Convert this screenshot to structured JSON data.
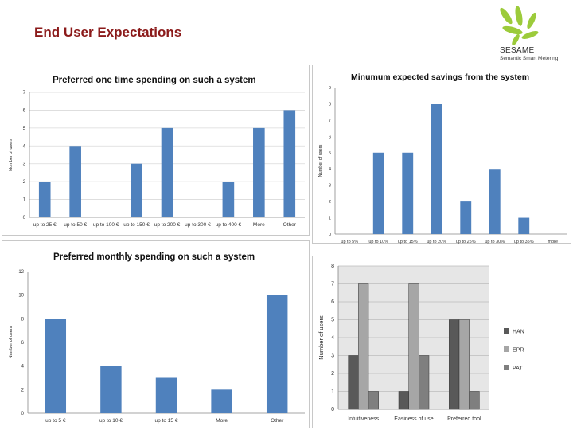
{
  "slide": {
    "title": "End User Expectations",
    "logo_name": "SESAME",
    "logo_tagline": "Semantic Smart Metering",
    "logo_color": "#9ccb3b"
  },
  "chart_data": [
    {
      "type": "bar",
      "title": "Preferred one time spending on such a system",
      "ylabel": "Number of users",
      "xlabel": "",
      "categories": [
        "up to 25 €",
        "up to 50 €",
        "up to 100 €",
        "up to 150 €",
        "up to 200 €",
        "up to 300 €",
        "up to 400 €",
        "More",
        "Other"
      ],
      "values": [
        2,
        4,
        0,
        3,
        5,
        0,
        2,
        5,
        6
      ],
      "ylim": [
        0,
        7
      ],
      "yticks": [
        0,
        1,
        2,
        3,
        4,
        5,
        6,
        7
      ],
      "grid": true,
      "legend": "none",
      "bar_color": "#4f81bd"
    },
    {
      "type": "bar",
      "title": "Minumum expected savings from the system",
      "ylabel": "Number of users",
      "xlabel": "",
      "categories": [
        "up to 5%",
        "up to 10%",
        "up to 15%",
        "up to 20%",
        "up to 25%",
        "up to 30%",
        "up to 35%",
        "more"
      ],
      "values": [
        0,
        5,
        5,
        8,
        2,
        4,
        1,
        0
      ],
      "ylim": [
        0,
        9
      ],
      "yticks": [
        0,
        1,
        2,
        3,
        4,
        5,
        6,
        7,
        8,
        9
      ],
      "grid": false,
      "legend": "none",
      "bar_color": "#4f81bd"
    },
    {
      "type": "bar",
      "title": "Preferred monthly spending on such a system",
      "ylabel": "Number of users",
      "xlabel": "",
      "categories": [
        "up to 5 €",
        "up to 10 €",
        "up to 15 €",
        "More",
        "Other"
      ],
      "values": [
        8,
        4,
        3,
        2,
        10
      ],
      "ylim": [
        0,
        12
      ],
      "yticks": [
        0,
        2,
        4,
        6,
        8,
        10,
        12
      ],
      "grid": false,
      "legend": "none",
      "bar_color": "#4f81bd"
    },
    {
      "type": "bar",
      "title": "",
      "ylabel": "Number of users",
      "xlabel": "",
      "categories": [
        "Intuitiveness",
        "Easiness of use",
        "Preferred tool"
      ],
      "series": [
        {
          "name": "HAN",
          "values": [
            3,
            1,
            5
          ],
          "color": "#595959"
        },
        {
          "name": "EPR",
          "values": [
            7,
            7,
            5
          ],
          "color": "#a6a6a6"
        },
        {
          "name": "PAT",
          "values": [
            1,
            3,
            1
          ],
          "color": "#7f7f7f"
        }
      ],
      "ylim": [
        0,
        8
      ],
      "yticks": [
        0,
        1,
        2,
        3,
        4,
        5,
        6,
        7,
        8
      ],
      "grid": true,
      "legend": "right",
      "plot_background": "#e6e6e6"
    }
  ]
}
